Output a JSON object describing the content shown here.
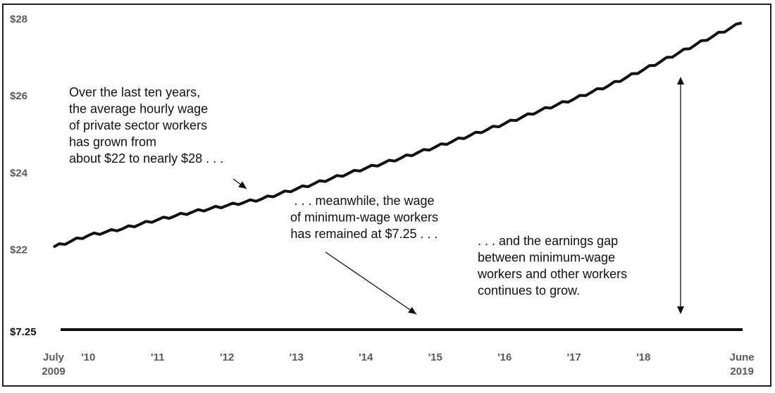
{
  "chart_data": {
    "type": "line",
    "title": "",
    "xlabel": "",
    "ylabel": "",
    "x_ticks": [
      {
        "label": "July",
        "label2": "2009",
        "t": 0
      },
      {
        "label": "'10",
        "t": 0.5
      },
      {
        "label": "'11",
        "t": 1.5
      },
      {
        "label": "'12",
        "t": 2.5
      },
      {
        "label": "'13",
        "t": 3.5
      },
      {
        "label": "'14",
        "t": 4.5
      },
      {
        "label": "'15",
        "t": 5.5
      },
      {
        "label": "'16",
        "t": 6.5
      },
      {
        "label": "'17",
        "t": 7.5
      },
      {
        "label": "'18",
        "t": 8.5
      },
      {
        "label": "June",
        "label2": "2019",
        "t": 9.92
      }
    ],
    "y_ticks": [
      {
        "label": "$28",
        "value": 28
      },
      {
        "label": "$26",
        "value": 26
      },
      {
        "label": "$24",
        "value": 24
      },
      {
        "label": "$22",
        "value": 22
      }
    ],
    "min_wage_label": "$7.25",
    "series": [
      {
        "name": "",
        "points": [
          [
            "2009-07",
            22.07
          ],
          [
            "2010-01",
            22.37
          ],
          [
            "2010-07",
            22.55
          ],
          [
            "2011-01",
            22.78
          ],
          [
            "2011-07",
            22.98
          ],
          [
            "2012-01",
            23.15
          ],
          [
            "2012-07",
            23.32
          ],
          [
            "2013-01",
            23.58
          ],
          [
            "2013-07",
            23.85
          ],
          [
            "2014-01",
            24.12
          ],
          [
            "2014-07",
            24.38
          ],
          [
            "2015-01",
            24.67
          ],
          [
            "2015-07",
            24.97
          ],
          [
            "2016-01",
            25.28
          ],
          [
            "2016-07",
            25.61
          ],
          [
            "2017-01",
            25.92
          ],
          [
            "2017-07",
            26.27
          ],
          [
            "2018-01",
            26.68
          ],
          [
            "2018-07",
            27.11
          ],
          [
            "2019-01",
            27.55
          ],
          [
            "2019-06",
            27.9
          ]
        ]
      },
      {
        "name": "",
        "points": [
          [
            "2009-07",
            7.25
          ],
          [
            "2019-06",
            7.25
          ]
        ]
      }
    ],
    "annotations": [
      {
        "lines": [
          "Over the last ten years,",
          "the average hourly wage",
          "of private sector workers",
          "has grown from",
          "about $22 to nearly $28 . . ."
        ]
      },
      {
        "lines": [
          ". . . meanwhile, the wage",
          "of minimum-wage workers",
          "has remained at $7.25 . . ."
        ]
      },
      {
        "lines": [
          ". . . and the earnings gap",
          "between minimum-wage",
          "workers and other workers",
          "continues to grow."
        ]
      }
    ],
    "grid": false,
    "legend": "none"
  }
}
